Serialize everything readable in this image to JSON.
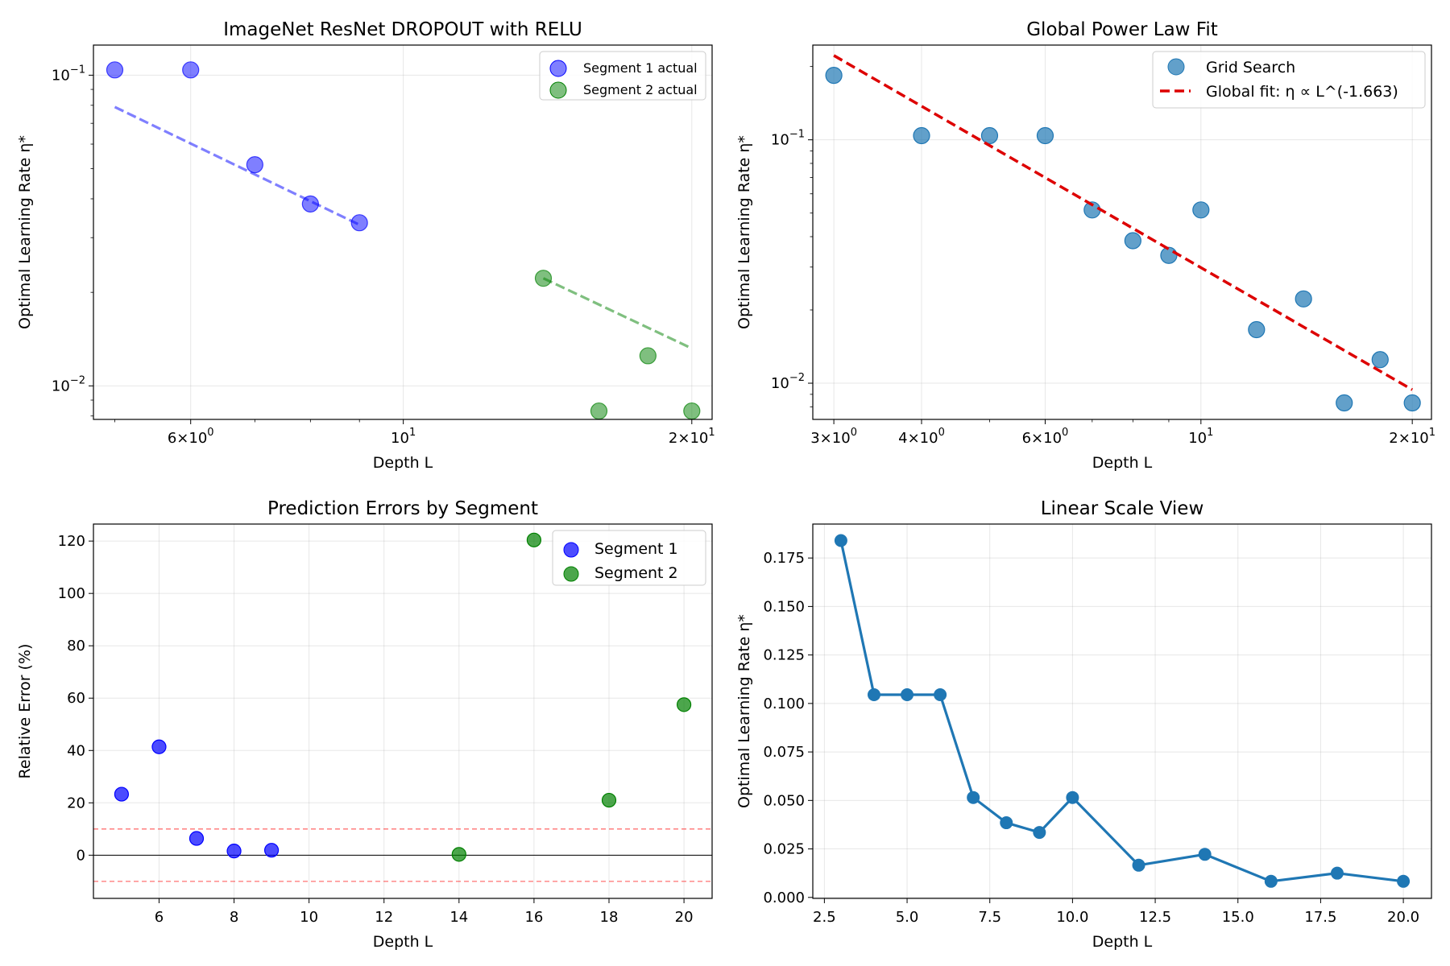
{
  "chart_data": [
    {
      "type": "scatter",
      "title": "ImageNet ResNet DROPOUT with RELU",
      "xlabel": "Depth L",
      "ylabel": "Optimal Learning Rate η*",
      "xscale": "log",
      "yscale": "log",
      "xlim": [
        4.75,
        21.0
      ],
      "ylim": [
        0.0078,
        0.125
      ],
      "x_ticks": [
        {
          "v": 6,
          "m": "6",
          "e": "0"
        },
        {
          "v": 10,
          "m": "",
          "e": "1"
        },
        {
          "v": 20,
          "m": "2",
          "e": "1"
        }
      ],
      "y_ticks": [
        {
          "v": 0.1,
          "m": "",
          "e": "−1"
        },
        {
          "v": 0.01,
          "m": "",
          "e": "−2"
        }
      ],
      "legend_position": "top-right",
      "series": [
        {
          "name": "Segment 1 actual",
          "color": "#0000ff",
          "x": [
            5,
            6,
            7,
            8,
            9
          ],
          "y": [
            0.104,
            0.104,
            0.0515,
            0.0385,
            0.0335
          ],
          "fit": [
            [
              5,
              0.079
            ],
            [
              9,
              0.033
            ]
          ]
        },
        {
          "name": "Segment 2 actual",
          "color": "#008000",
          "x": [
            14,
            16,
            18,
            20
          ],
          "y": [
            0.0222,
            0.0083,
            0.0125,
            0.0083
          ],
          "fit": [
            [
              14,
              0.0222
            ],
            [
              20,
              0.0132
            ]
          ]
        }
      ]
    },
    {
      "type": "scatter",
      "title": "Global Power Law Fit",
      "xlabel": "Depth L",
      "ylabel": "Optimal Learning Rate η*",
      "xscale": "log",
      "yscale": "log",
      "xlim": [
        2.8,
        21.3
      ],
      "ylim": [
        0.0071,
        0.245
      ],
      "x_ticks": [
        {
          "v": 3,
          "m": "3",
          "e": "0"
        },
        {
          "v": 4,
          "m": "4",
          "e": "0"
        },
        {
          "v": 6,
          "m": "6",
          "e": "0"
        },
        {
          "v": 10,
          "m": "",
          "e": "1"
        },
        {
          "v": 20,
          "m": "2",
          "e": "1"
        }
      ],
      "y_ticks": [
        {
          "v": 0.1,
          "m": "",
          "e": "−1"
        },
        {
          "v": 0.01,
          "m": "",
          "e": "−2"
        }
      ],
      "legend_position": "top-right",
      "series": [
        {
          "name": "Grid Search",
          "color": "#1f77b4",
          "x": [
            3,
            4,
            5,
            6,
            7,
            8,
            9,
            10,
            12,
            14,
            16,
            18,
            20
          ],
          "y": [
            0.184,
            0.104,
            0.104,
            0.104,
            0.0515,
            0.0385,
            0.0335,
            0.0515,
            0.0166,
            0.0222,
            0.0083,
            0.0125,
            0.0083
          ]
        }
      ],
      "fit": {
        "name": "Global fit: η ∝ L^(-1.663)",
        "color": "#dd0000",
        "x": [
          3,
          20
        ],
        "y": [
          0.222,
          0.0094
        ]
      }
    },
    {
      "type": "scatter",
      "title": "Prediction Errors by Segment",
      "xlabel": "Depth L",
      "ylabel": "Relative Error (%)",
      "xscale": "linear",
      "yscale": "linear",
      "xlim": [
        4.25,
        20.75
      ],
      "ylim": [
        -16.5,
        126.5
      ],
      "x_ticks": [
        6,
        8,
        10,
        12,
        14,
        16,
        18,
        20
      ],
      "y_ticks": [
        0,
        20,
        40,
        60,
        80,
        100,
        120
      ],
      "hlines": [
        {
          "y": 0,
          "style": "solid",
          "color": "#000000"
        },
        {
          "y": 10,
          "style": "dashed",
          "color": "#ff0000"
        },
        {
          "y": -10,
          "style": "dashed",
          "color": "#ff0000"
        }
      ],
      "legend_position": "top-right",
      "series": [
        {
          "name": "Segment 1",
          "color": "#0000ff",
          "x": [
            5,
            6,
            7,
            8,
            9
          ],
          "y": [
            23.3,
            41.4,
            6.4,
            1.6,
            1.9
          ]
        },
        {
          "name": "Segment 2",
          "color": "#008000",
          "x": [
            14,
            16,
            18,
            20
          ],
          "y": [
            0.3,
            120.4,
            21.0,
            57.5
          ]
        }
      ]
    },
    {
      "type": "line",
      "title": "Linear Scale View",
      "xlabel": "Depth L",
      "ylabel": "Optimal Learning Rate η*",
      "xscale": "linear",
      "yscale": "linear",
      "xlim": [
        2.15,
        20.85
      ],
      "ylim": [
        -0.0005,
        0.1925
      ],
      "x_ticks": [
        2.5,
        5.0,
        7.5,
        10.0,
        12.5,
        15.0,
        17.5,
        20.0
      ],
      "x_tick_labels": [
        "2.5",
        "5.0",
        "7.5",
        "10.0",
        "12.5",
        "15.0",
        "17.5",
        "20.0"
      ],
      "y_ticks": [
        0.0,
        0.025,
        0.05,
        0.075,
        0.1,
        0.125,
        0.15,
        0.175
      ],
      "y_tick_labels": [
        "0.000",
        "0.025",
        "0.050",
        "0.075",
        "0.100",
        "0.125",
        "0.150",
        "0.175"
      ],
      "series": [
        {
          "name": "η*",
          "color": "#1f77b4",
          "x": [
            3,
            4,
            5,
            6,
            7,
            8,
            9,
            10,
            12,
            14,
            16,
            18,
            20
          ],
          "y": [
            0.184,
            0.1045,
            0.1045,
            0.1045,
            0.0515,
            0.0385,
            0.0335,
            0.0515,
            0.0166,
            0.0222,
            0.0083,
            0.0125,
            0.0083
          ]
        }
      ]
    }
  ]
}
